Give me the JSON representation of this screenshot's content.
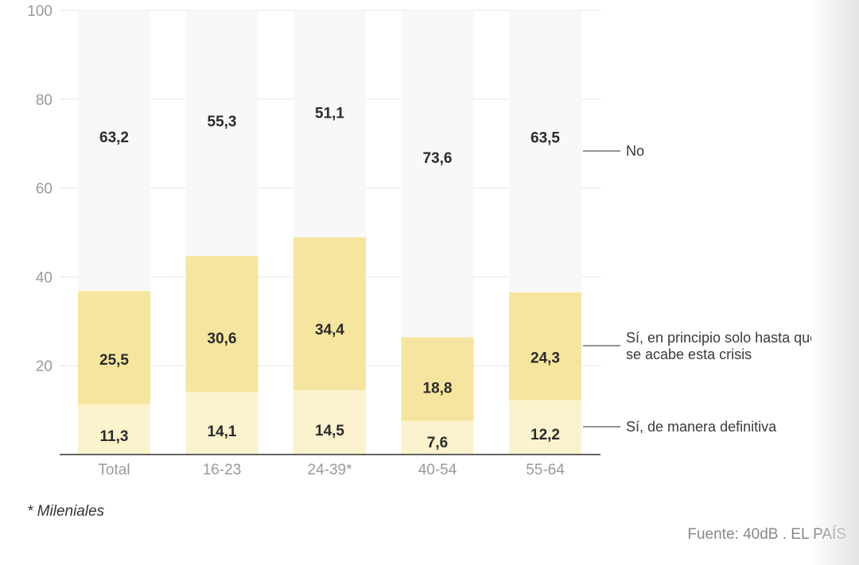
{
  "colors": {
    "no": "#f8f8f8",
    "temporary": "#f6e59e",
    "permanent": "#fcf2cd",
    "grid": "#e6e6e6",
    "axis": "#333333"
  },
  "chart_data": {
    "type": "bar",
    "stacked": true,
    "categories": [
      "Total",
      "16-23",
      "24-39*",
      "40-54",
      "55-64"
    ],
    "ylim": [
      0,
      100
    ],
    "yticks": [
      20,
      40,
      60,
      80,
      100
    ],
    "series": [
      {
        "key": "permanent",
        "name": "Sí, de manera definitiva",
        "values": [
          11.3,
          14.1,
          14.5,
          7.6,
          12.2
        ],
        "labels": [
          "11,3",
          "14,1",
          "14,5",
          "7,6",
          "12,2"
        ]
      },
      {
        "key": "temporary",
        "name": "Sí, en principio solo hasta que se acabe esta crisis",
        "legend_lines": [
          "Sí, en principio solo hasta que",
          "se acabe esta crisis"
        ],
        "values": [
          25.5,
          30.6,
          34.4,
          18.8,
          24.3
        ],
        "labels": [
          "25,5",
          "30,6",
          "34,4",
          "18,8",
          "24,3"
        ]
      },
      {
        "key": "no",
        "name": "No",
        "values": [
          63.2,
          55.3,
          51.1,
          73.6,
          63.5
        ],
        "labels": [
          "63,2",
          "55,3",
          "51,1",
          "73,6",
          "63,5"
        ]
      }
    ]
  },
  "footnote": "* Mileniales",
  "source": "Fuente: 40dB . EL PAÍS"
}
